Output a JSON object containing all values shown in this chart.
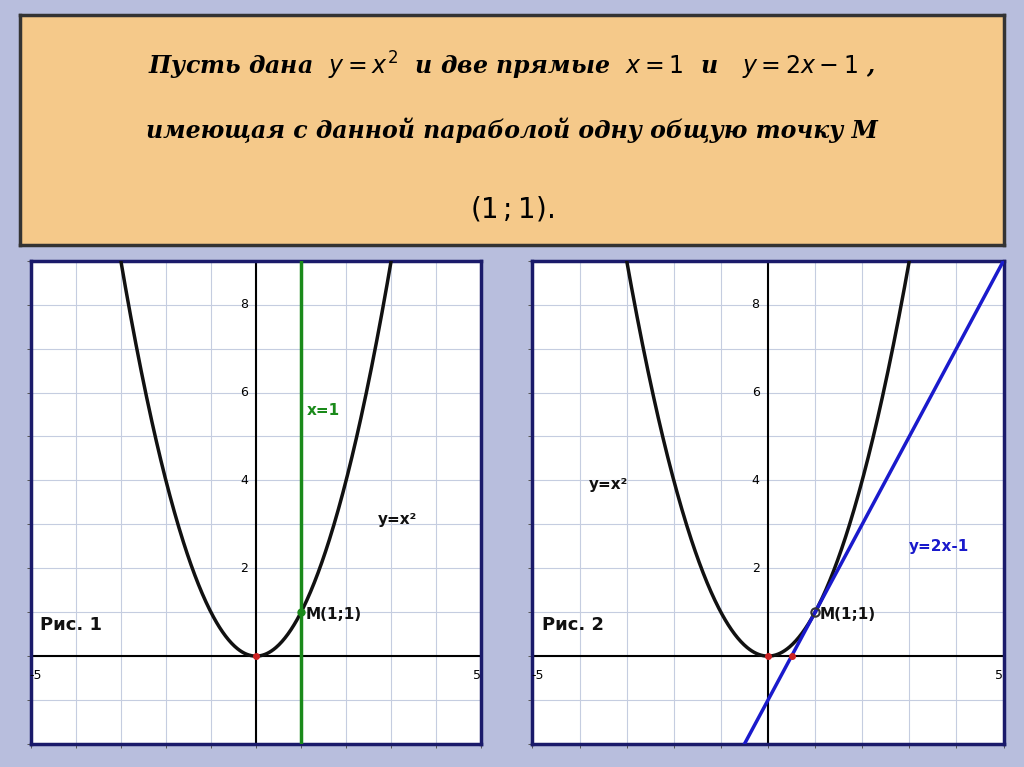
{
  "bg_color": "#b8bedd",
  "header_bg": "#f5c98a",
  "header_border": "#333333",
  "plot_bg": "#ffffff",
  "plot_border_color": "#1a1a6a",
  "grid_color": "#c5cde0",
  "axis_color": "#000000",
  "parabola_color": "#111111",
  "vert_line_color": "#1a8a1a",
  "tangent_color": "#1a1acc",
  "point_red": "#cc2222",
  "point_green": "#1a8a1a",
  "label_x1": "x=1",
  "label_yx2": "y=x²",
  "label_tan": "y=2x-1",
  "label_M": "M(1;1)",
  "label_fig1": "Рис. 1",
  "label_fig2": "Рис. 2",
  "xmin": -5,
  "xmax": 5,
  "ymin": -2,
  "ymax": 9,
  "ytick_vals": [
    2,
    4,
    6,
    8
  ],
  "header_line1": "Пусть дана  $y = x^2$  и две прямые  $x = 1$  и   $y = 2x-1$ ,",
  "header_line2": "имеющая с данной параболой одну общую точку М",
  "header_line3": "$(1\\,;1).$"
}
